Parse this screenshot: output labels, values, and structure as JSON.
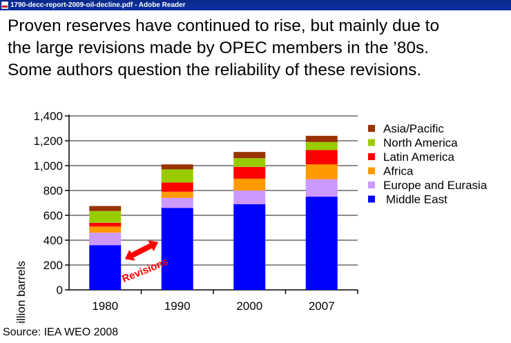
{
  "window": {
    "title": "1790-decc-report-2009-oil-decline.pdf - Adobe Reader",
    "icon": "pdf-icon"
  },
  "slide": {
    "heading_lines": [
      "Proven reserves have continued to rise, but mainly due to",
      "the large revisions made by OPEC members in the ’80s.",
      "Some authors question the reliability of these revisions."
    ],
    "source": "Source: IEA WEO 2008"
  },
  "chart_data": {
    "type": "bar",
    "stacked": true,
    "categories": [
      "1980",
      "1990",
      "2000",
      "2007"
    ],
    "ylabel": "Billion barrels",
    "ylim": [
      0,
      1400
    ],
    "yticks": [
      0,
      200,
      400,
      600,
      800,
      1000,
      1200,
      1400
    ],
    "ytick_labels": [
      "0",
      "200",
      "400",
      "600",
      "800",
      "1,000",
      "1,200",
      "1,400"
    ],
    "grid": true,
    "legend_position": "right",
    "series": [
      {
        "name": "Middle East",
        "color": "#0000ff",
        "values": [
          360,
          660,
          690,
          750
        ]
      },
      {
        "name": "Europe and Eurasia",
        "color": "#cc99ff",
        "values": [
          100,
          80,
          110,
          140
        ]
      },
      {
        "name": "Africa",
        "color": "#ff9900",
        "values": [
          50,
          50,
          95,
          120
        ]
      },
      {
        "name": "Latin America",
        "color": "#ff0000",
        "values": [
          30,
          75,
          95,
          115
        ]
      },
      {
        "name": "North America",
        "color": "#99cc00",
        "values": [
          95,
          105,
          70,
          65
        ]
      },
      {
        "name": "Asia/Pacific",
        "color": "#993300",
        "values": [
          40,
          40,
          50,
          50
        ]
      }
    ],
    "legend_order": [
      "Asia/Pacific",
      "North America",
      "Latin America",
      "Africa",
      "Europe and Eurasia",
      "Middle East"
    ],
    "annotation": {
      "text": "Revisions",
      "color": "#ff0000"
    }
  }
}
